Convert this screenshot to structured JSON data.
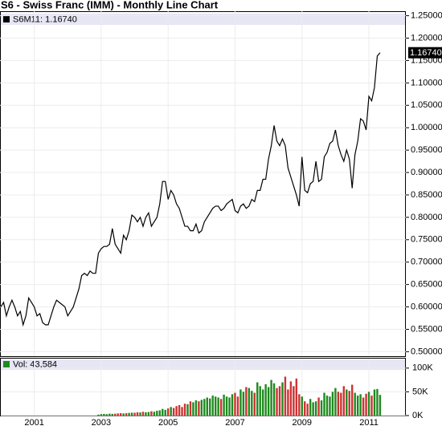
{
  "chart_data": [
    {
      "type": "line",
      "title": "S6 - Swiss Franc (IMM) - Monthly Line Chart",
      "legend": "S6M11: 1.16740",
      "last_label": "1.16740",
      "color": "#000000",
      "values": [
        0.6,
        0.61,
        0.58,
        0.6,
        0.615,
        0.6,
        0.58,
        0.59,
        0.56,
        0.58,
        0.62,
        0.61,
        0.6,
        0.58,
        0.585,
        0.565,
        0.56,
        0.56,
        0.58,
        0.6,
        0.615,
        0.61,
        0.605,
        0.6,
        0.58,
        0.59,
        0.6,
        0.62,
        0.64,
        0.67,
        0.675,
        0.67,
        0.68,
        0.675,
        0.675,
        0.72,
        0.73,
        0.735,
        0.735,
        0.74,
        0.775,
        0.74,
        0.73,
        0.72,
        0.76,
        0.75,
        0.77,
        0.805,
        0.8,
        0.79,
        0.8,
        0.78,
        0.8,
        0.81,
        0.78,
        0.79,
        0.8,
        0.83,
        0.88,
        0.88,
        0.84,
        0.86,
        0.85,
        0.83,
        0.82,
        0.8,
        0.78,
        0.78,
        0.77,
        0.77,
        0.785,
        0.765,
        0.77,
        0.79,
        0.8,
        0.81,
        0.82,
        0.825,
        0.825,
        0.815,
        0.82,
        0.83,
        0.835,
        0.84,
        0.815,
        0.81,
        0.825,
        0.83,
        0.82,
        0.825,
        0.84,
        0.835,
        0.86,
        0.86,
        0.885,
        0.885,
        0.93,
        0.96,
        1.005,
        0.97,
        0.96,
        0.975,
        0.96,
        0.91,
        0.89,
        0.87,
        0.85,
        0.825,
        0.935,
        0.86,
        0.855,
        0.875,
        0.88,
        0.925,
        0.88,
        0.885,
        0.935,
        0.945,
        0.965,
        0.97,
        0.995,
        0.96,
        0.94,
        0.925,
        0.95,
        0.93,
        0.865,
        0.94,
        0.97,
        1.02,
        1.015,
        0.995,
        1.07,
        1.06,
        1.09,
        1.16,
        1.1674
      ],
      "ylim": [
        0.49,
        1.26
      ],
      "yticks": [
        {
          "value": 0.5,
          "label": "0.50000"
        },
        {
          "value": 0.55,
          "label": "0.55000"
        },
        {
          "value": 0.6,
          "label": "0.60000"
        },
        {
          "value": 0.65,
          "label": "0.65000"
        },
        {
          "value": 0.7,
          "label": "0.70000"
        },
        {
          "value": 0.75,
          "label": "0.75000"
        },
        {
          "value": 0.8,
          "label": "0.80000"
        },
        {
          "value": 0.85,
          "label": "0.85000"
        },
        {
          "value": 0.9,
          "label": "0.90000"
        },
        {
          "value": 0.95,
          "label": "0.95000"
        },
        {
          "value": 1.0,
          "label": "1.00000"
        },
        {
          "value": 1.05,
          "label": "1.05000"
        },
        {
          "value": 1.1,
          "label": "1.10000"
        },
        {
          "value": 1.15,
          "label": "1.15000"
        },
        {
          "value": 1.2,
          "label": "1.20000"
        },
        {
          "value": 1.25,
          "label": "1.25000"
        }
      ],
      "grid": true
    },
    {
      "type": "bar",
      "legend": "Vol: 43,584",
      "up_color": "#1f8a1f",
      "down_color": "#cc3333",
      "categories": [
        null,
        null,
        null,
        null,
        null,
        null,
        null,
        null,
        null,
        null,
        null,
        null,
        "2001",
        null,
        null,
        null,
        null,
        null,
        null,
        null,
        null,
        null,
        null,
        null,
        null,
        null,
        null,
        null,
        null,
        null,
        null,
        null,
        null,
        null,
        null,
        null,
        "2003",
        null,
        null,
        null,
        null,
        null,
        null,
        null,
        null,
        null,
        null,
        null,
        null,
        null,
        null,
        null,
        null,
        null,
        null,
        null,
        null,
        null,
        null,
        null,
        "2005",
        null,
        null,
        null,
        null,
        null,
        null,
        null,
        null,
        null,
        null,
        null,
        null,
        null,
        null,
        null,
        null,
        null,
        null,
        null,
        null,
        null,
        null,
        null,
        "2007",
        null,
        null,
        null,
        null,
        null,
        null,
        null,
        null,
        null,
        null,
        null,
        null,
        null,
        null,
        null,
        null,
        null,
        null,
        null,
        null,
        null,
        null,
        null,
        "2009",
        null,
        null,
        null,
        null,
        null,
        null,
        null,
        null,
        null,
        null,
        null,
        null,
        null,
        null,
        null,
        null,
        null,
        null,
        null,
        null,
        null,
        null,
        null,
        "2011",
        null,
        null,
        null,
        null
      ],
      "values": [
        null,
        null,
        null,
        null,
        null,
        null,
        null,
        null,
        null,
        null,
        null,
        null,
        null,
        null,
        null,
        null,
        null,
        null,
        null,
        null,
        null,
        null,
        null,
        null,
        null,
        null,
        null,
        null,
        null,
        null,
        null,
        null,
        null,
        null,
        null,
        2000,
        3000,
        3500,
        3000,
        4000,
        3500,
        4000,
        4500,
        5000,
        4500,
        5000,
        5500,
        6000,
        6000,
        7000,
        6500,
        8000,
        7000,
        7500,
        9000,
        8000,
        10000,
        11000,
        14000,
        12000,
        15000,
        18000,
        16000,
        20000,
        22000,
        18000,
        25000,
        24000,
        30000,
        28000,
        32000,
        30000,
        33000,
        35000,
        38000,
        36000,
        42000,
        40000,
        38000,
        35000,
        44000,
        40000,
        38000,
        45000,
        48000,
        40000,
        55000,
        50000,
        60000,
        58000,
        52000,
        48000,
        70000,
        62000,
        55000,
        66000,
        60000,
        75000,
        68000,
        58000,
        62000,
        70000,
        82000,
        55000,
        72000,
        62000,
        78000,
        45000,
        40000,
        30000,
        25000,
        35000,
        28000,
        30000,
        38000,
        32000,
        48000,
        42000,
        40000,
        50000,
        58000,
        50000,
        48000,
        62000,
        55000,
        52000,
        65000,
        48000,
        42000,
        45000,
        38000,
        46000,
        50000,
        42000,
        55000,
        56000,
        43584
      ],
      "ylim": [
        0,
        120000
      ],
      "yticks": [
        {
          "value": 0,
          "label": "0K"
        },
        {
          "value": 50000,
          "label": "50K"
        },
        {
          "value": 100000,
          "label": "100K"
        }
      ],
      "grid": true
    }
  ]
}
